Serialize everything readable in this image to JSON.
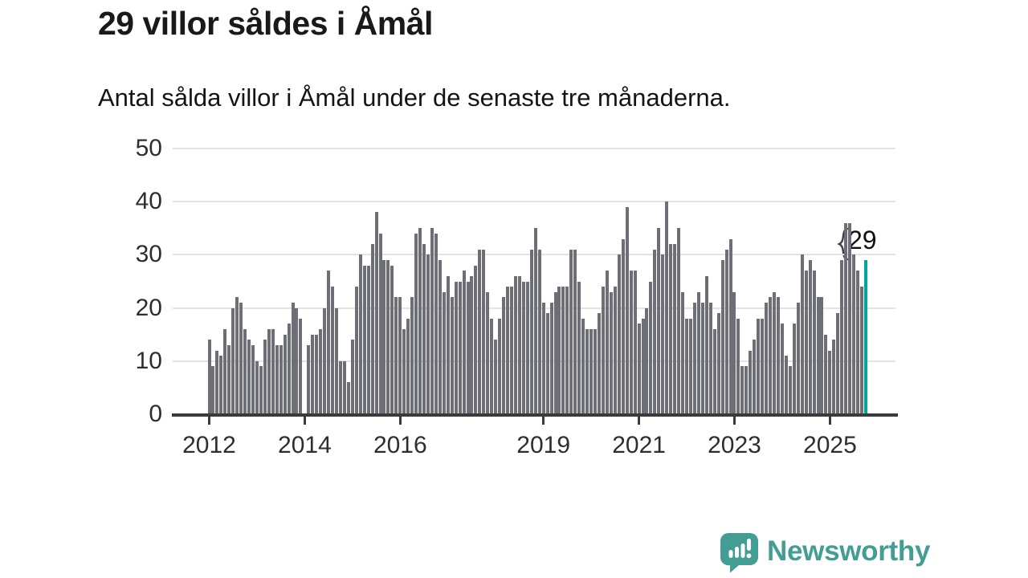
{
  "title": "29 villor såldes i Åmål",
  "subtitle": "Antal sålda villor i Åmål under de senaste tre månaderna.",
  "annotation": {
    "label": "29"
  },
  "branding": {
    "name": "Newsworthy",
    "icon": "bar-chart-speech-bubble-icon"
  },
  "colors": {
    "bar": "#6e6e76",
    "highlight": "#00a79b",
    "brand_teal": "#429e93",
    "grid": "#e3e3e3",
    "axis": "#3b3b3b",
    "text": "#191919"
  },
  "chart_data": {
    "type": "bar",
    "title": "29 villor såldes i Åmål",
    "subtitle": "Antal sålda villor i Åmål under de senaste tre månaderna.",
    "x_start": "2012-01",
    "x_end": "2025-10",
    "x_frequency": "monthly",
    "x_ticks": [
      "2012",
      "2014",
      "2016",
      "2019",
      "2021",
      "2023",
      "2025"
    ],
    "x_tick_month_indices": [
      0,
      24,
      48,
      84,
      108,
      132,
      156
    ],
    "y_ticks": [
      0,
      10,
      20,
      30,
      40,
      50
    ],
    "ylim": [
      0,
      50
    ],
    "grid": true,
    "highlight_last": true,
    "highlight_value": 29,
    "values": [
      14,
      9,
      12,
      11,
      16,
      13,
      20,
      22,
      21,
      16,
      14,
      13,
      10,
      9,
      14,
      16,
      16,
      13,
      13,
      15,
      17,
      21,
      20,
      18,
      null,
      13,
      15,
      15,
      16,
      20,
      27,
      24,
      20,
      10,
      10,
      6,
      14,
      24,
      30,
      28,
      28,
      32,
      38,
      34,
      29,
      29,
      28,
      22,
      22,
      16,
      18,
      22,
      34,
      35,
      32,
      30,
      35,
      34,
      29,
      23,
      26,
      22,
      25,
      25,
      27,
      25,
      26,
      28,
      31,
      31,
      23,
      18,
      14,
      18,
      22,
      24,
      24,
      26,
      26,
      25,
      25,
      31,
      35,
      31,
      21,
      19,
      21,
      23,
      24,
      24,
      24,
      31,
      31,
      25,
      18,
      16,
      16,
      16,
      19,
      24,
      27,
      23,
      24,
      30,
      33,
      39,
      27,
      27,
      17,
      18,
      20,
      25,
      31,
      35,
      30,
      40,
      32,
      32,
      35,
      23,
      18,
      18,
      21,
      23,
      21,
      26,
      21,
      16,
      19,
      29,
      31,
      33,
      23,
      18,
      9,
      9,
      12,
      14,
      18,
      18,
      21,
      22,
      23,
      22,
      17,
      11,
      9,
      17,
      21,
      30,
      27,
      29,
      27,
      22,
      22,
      15,
      12,
      14,
      19,
      29,
      36,
      36,
      30,
      27,
      24,
      29
    ]
  }
}
